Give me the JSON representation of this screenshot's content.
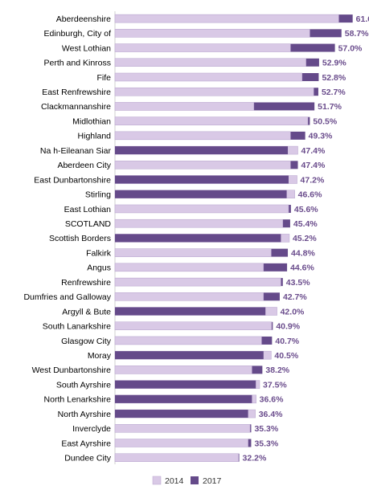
{
  "chart_data": {
    "type": "bar",
    "orientation": "horizontal",
    "stacked": "overlay",
    "categories": [
      "Aberdeenshire",
      "Edinburgh, City of",
      "West Lothian",
      "Perth and Kinross",
      "Fife",
      "East Renfrewshire",
      "Clackmannanshire",
      "Midlothian",
      "Highland",
      "Na h-Eileanan Siar",
      "Aberdeen City",
      "East Dunbartonshire",
      "Stirling",
      "East Lothian",
      "SCOTLAND",
      "Scottish Borders",
      "Falkirk",
      "Angus",
      "Renfrewshire",
      "Dumfries and Galloway",
      "Argyll & Bute",
      "South Lanarkshire",
      "Glasgow City",
      "Moray",
      "West Dunbartonshire",
      "South Ayrshire",
      "North Lenarkshire",
      "North Ayrshire",
      "Inverclyde",
      "East Ayrshire",
      "Dundee City"
    ],
    "series": [
      {
        "name": "2014",
        "color": "#d9c9e6",
        "values": [
          58.0,
          50.5,
          45.5,
          49.5,
          48.5,
          51.5,
          36.0,
          50.0,
          45.5,
          47.4,
          45.5,
          47.2,
          46.6,
          45.0,
          43.5,
          45.2,
          40.5,
          38.5,
          43.0,
          38.5,
          42.0,
          40.6,
          38.0,
          40.5,
          35.5,
          37.5,
          36.6,
          36.4,
          35.0,
          34.5,
          32.0
        ]
      },
      {
        "name": "2017",
        "color": "#654a8a",
        "values": [
          61.6,
          58.7,
          57.0,
          52.9,
          52.8,
          52.7,
          51.7,
          50.5,
          49.3,
          44.8,
          47.4,
          45.0,
          44.5,
          45.6,
          45.4,
          43.0,
          44.8,
          44.6,
          43.5,
          42.7,
          39.0,
          40.9,
          40.7,
          38.5,
          38.2,
          36.5,
          35.5,
          34.5,
          35.3,
          35.3,
          32.2
        ]
      }
    ],
    "value_labels": [
      "61.6%",
      "58.7%",
      "57.0%",
      "52.9%",
      "52.8%",
      "52.7%",
      "51.7%",
      "50.5%",
      "49.3%",
      "47.4%",
      "47.4%",
      "47.2%",
      "46.6%",
      "45.6%",
      "45.4%",
      "45.2%",
      "44.8%",
      "44.6%",
      "43.5%",
      "42.7%",
      "42.0%",
      "40.9%",
      "40.7%",
      "40.5%",
      "38.2%",
      "37.5%",
      "36.6%",
      "36.4%",
      "35.3%",
      "35.3%",
      "32.2%"
    ],
    "legend": [
      "2014",
      "2017"
    ],
    "legend_position": "bottom",
    "xlim": [
      0,
      65
    ],
    "grid": false,
    "title": "",
    "xlabel": "",
    "ylabel": ""
  }
}
